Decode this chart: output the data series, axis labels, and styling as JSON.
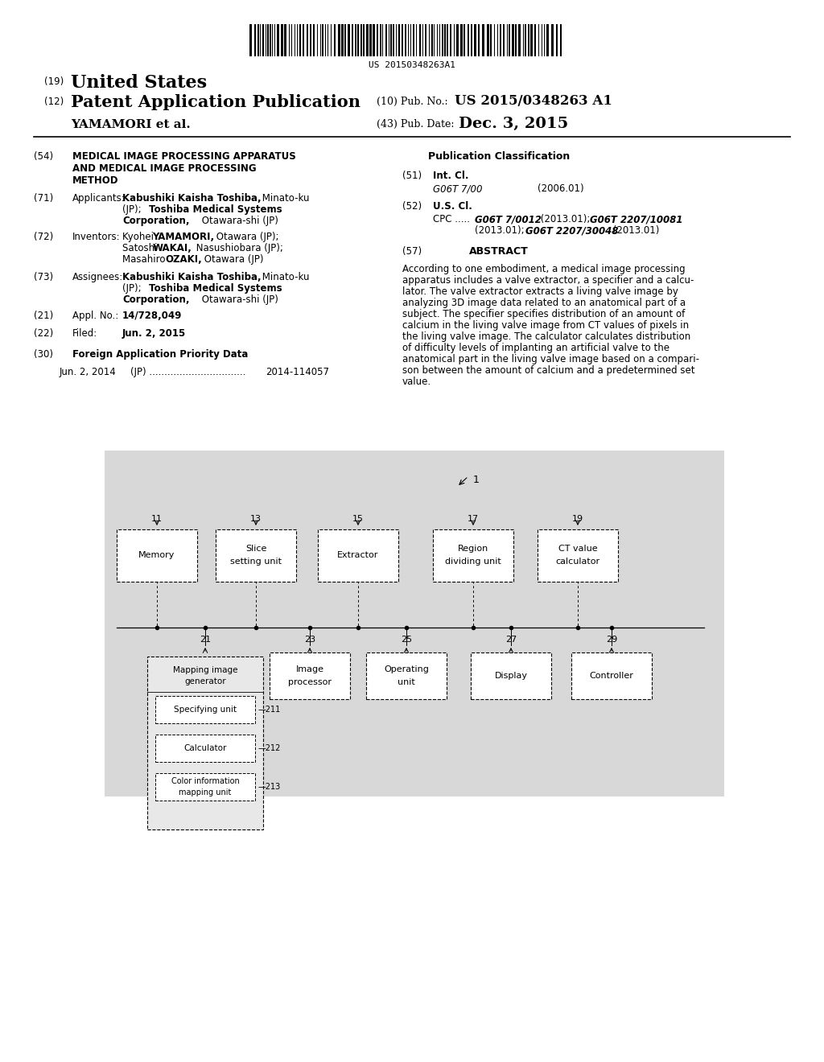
{
  "background_color": "#ffffff",
  "barcode_text": "US 20150348263A1",
  "header": {
    "country_label": "(19)",
    "country": "United States",
    "type_label": "(12)",
    "type": "Patent Application Publication",
    "inventors": "YAMAMORI et al.",
    "pub_no_label": "(10) Pub. No.:",
    "pub_no": "US 2015/0348263 A1",
    "pub_date_label": "(43) Pub. Date:",
    "pub_date": "Dec. 3, 2015"
  },
  "left_col": {
    "title_num": "(54)",
    "title": "MEDICAL IMAGE PROCESSING APPARATUS\nAND MEDICAL IMAGE PROCESSING\nMETHOD",
    "applicants_num": "(71)",
    "applicants_label": "Applicants:",
    "applicants": "Kabushiki Kaisha Toshiba, Minato-ku\n(JP); Toshiba Medical Systems\nCorporation, Otawara-shi (JP)",
    "inventors_num": "(72)",
    "inventors_label": "Inventors:",
    "inventors_text": "Kyohei YAMAMORI, Otawara (JP);\nSatoshi WAKAI, Nasushiobara (JP);\nMasahiro OZAKI, Otawara (JP)",
    "assignees_num": "(73)",
    "assignees_label": "Assignees:",
    "assignees_text": "Kabushiki Kaisha Toshiba, Minato-ku\n(JP); Toshiba Medical Systems\nCorporation, Otawara-shi (JP)",
    "appl_no_num": "(21)",
    "appl_no_label": "Appl. No.:",
    "appl_no": "14/728,049",
    "filed_num": "(22)",
    "filed_label": "Filed:",
    "filed_date": "Jun. 2, 2015",
    "foreign_num": "(30)",
    "foreign_label": "Foreign Application Priority Data",
    "foreign_entry": "Jun. 2, 2014    (JP) ................................ 2014-114057"
  },
  "right_col": {
    "pub_class_title": "Publication Classification",
    "int_cl_num": "(51)",
    "int_cl_label": "Int. Cl.",
    "int_cl_entry": "G06T 7/00",
    "int_cl_date": "(2006.01)",
    "us_cl_num": "(52)",
    "us_cl_label": "U.S. Cl.",
    "cpc_line1": "CPC ..... G06T 7/0012 (2013.01); G06T 2207/10081",
    "cpc_line2": "(2013.01); G06T 2207/30048 (2013.01)",
    "abstract_num": "(57)",
    "abstract_title": "ABSTRACT",
    "abstract_text": "According to one embodiment, a medical image processing\napparatus includes a valve extractor, a specifier and a calcu-\nlator. The valve extractor extracts a living valve image by\nanalyzing 3D image data related to an anatomical part of a\nsubject. The specifier specifies distribution of an amount of\ncalcium in the living valve image from CT values of pixels in\nthe living valve image. The calculator calculates distribution\nof difficulty levels of implanting an artificial valve to the\nanatomical part in the living valve image based on a compari-\nson between the amount of calcium and a predetermined set\nvalue."
  }
}
